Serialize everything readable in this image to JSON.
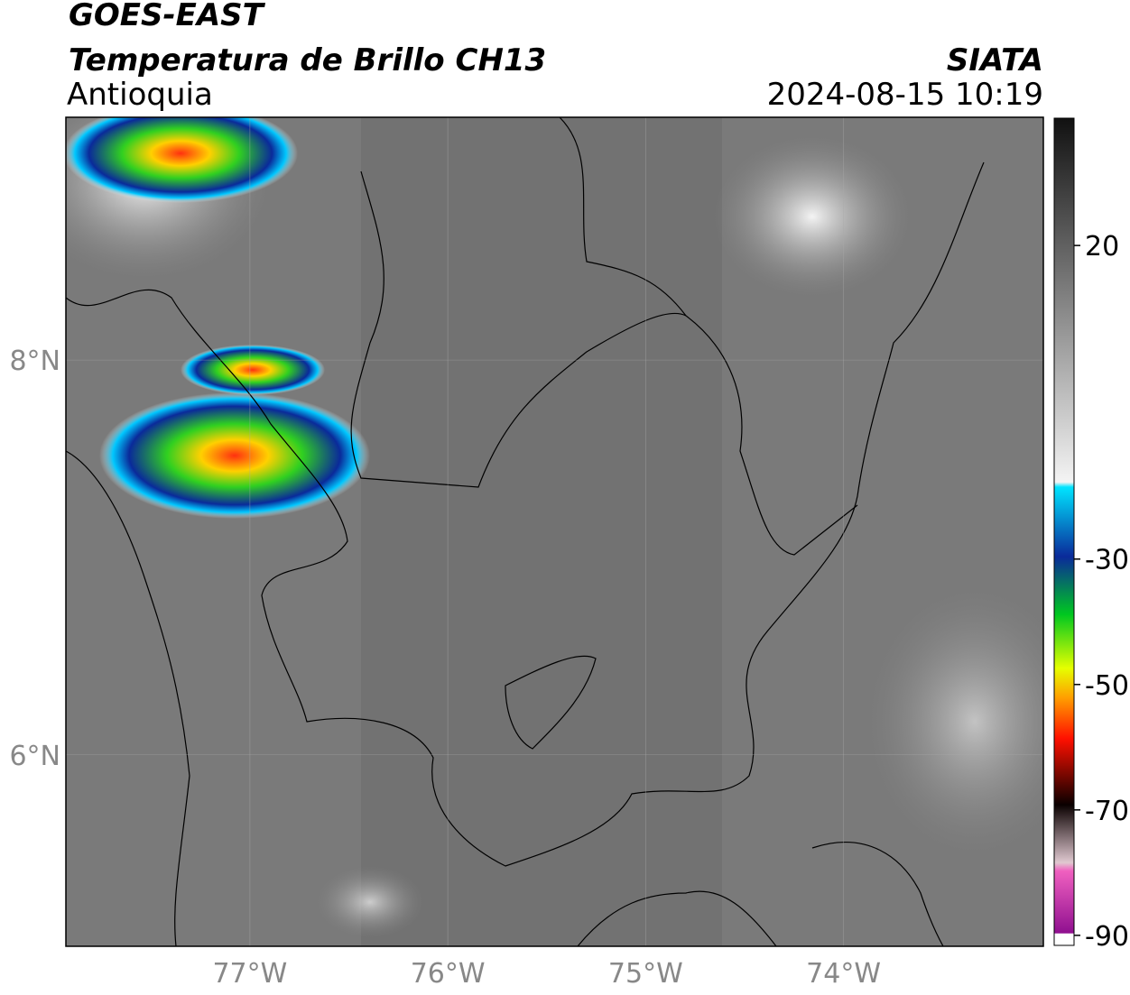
{
  "header": {
    "title": "GOES-EAST",
    "subtitle": "Temperatura de Brillo CH13",
    "region": "Antioquia",
    "source": "SIATA",
    "timestamp": "2024-08-15 10:19"
  },
  "map": {
    "lon_range": [
      -77.93,
      -72.99
    ],
    "lat_range": [
      5.03,
      9.23
    ],
    "lon_ticks": [
      {
        "value": -77,
        "label": "77°W"
      },
      {
        "value": -76,
        "label": "76°W"
      },
      {
        "value": -75,
        "label": "75°W"
      },
      {
        "value": -74,
        "label": "74°W"
      }
    ],
    "lat_ticks": [
      {
        "value": 8,
        "label": "8°N"
      },
      {
        "value": 6,
        "label": "6°N"
      }
    ]
  },
  "colorbar": {
    "range": [
      -91.6,
      40.3
    ],
    "ticks": [
      20,
      -30,
      -50,
      -70,
      -90
    ]
  }
}
